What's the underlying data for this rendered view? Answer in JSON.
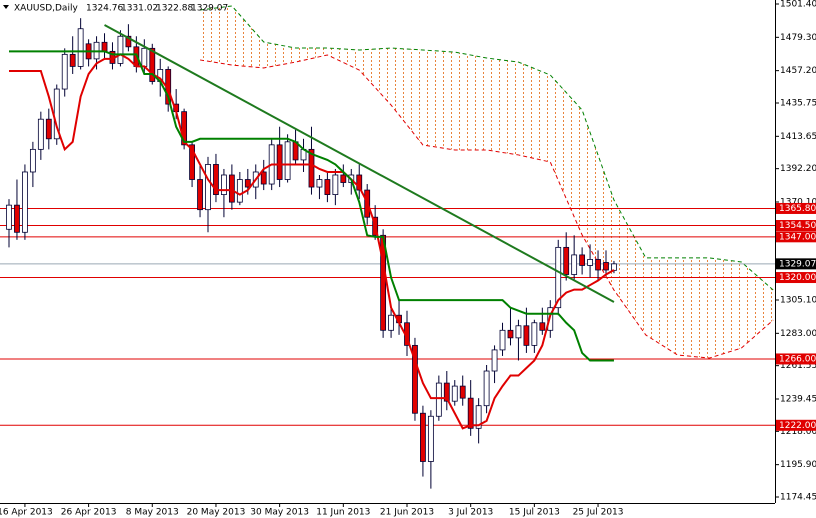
{
  "chart_data": {
    "type": "candlestick",
    "title": "XAUUSD,Daily",
    "ylim": [
      1174.45,
      1501.4
    ],
    "yticks": [
      {
        "value": 1501.4,
        "label": "1501.40"
      },
      {
        "value": 1479.3,
        "label": "1479.30"
      },
      {
        "value": 1457.2,
        "label": "1457.20"
      },
      1435.75,
      1413.65,
      {
        "value": 1392.2,
        "label": "1392.20"
      },
      {
        "value": 1370.1,
        "label": "1370.10"
      },
      {
        "value": 1305.1,
        "label": "1305.10"
      },
      {
        "value": 1283,
        "label": "1283.00"
      },
      1261.55,
      1239.45,
      {
        "value": 1218,
        "label": "1218.00"
      },
      {
        "value": 1195.9,
        "label": "1195.90"
      },
      1174.45
    ],
    "xticks": [
      {
        "value": 2,
        "label": "16 Apr 2013"
      },
      {
        "value": 10,
        "label": "26 Apr 2013"
      },
      {
        "value": 18,
        "label": "8 May 2013"
      },
      {
        "value": 26,
        "label": "20 May 2013"
      },
      {
        "value": 34,
        "label": "30 May 2013"
      },
      {
        "value": 42,
        "label": "11 Jun 2013"
      },
      {
        "value": 50,
        "label": "21 Jun 2013"
      },
      {
        "value": 58,
        "label": "3 Jul 2013"
      },
      {
        "value": 66,
        "label": "15 Jul 2013"
      },
      {
        "value": 74,
        "label": "25 Jul 2013"
      }
    ],
    "open": [
      1352,
      1368,
      1350,
      1390,
      1405,
      1425,
      1412,
      1445,
      1468,
      1460,
      1475,
      1465,
      1476,
      1470,
      1462,
      1480,
      1473,
      1460,
      1472,
      1450,
      1458,
      1435,
      1430,
      1408,
      1385,
      1365,
      1395,
      1375,
      1388,
      1370,
      1385,
      1380,
      1390,
      1382,
      1408,
      1385,
      1410,
      1398,
      1405,
      1380,
      1385,
      1375,
      1388,
      1383,
      1388,
      1378,
      1360,
      1348,
      1285,
      1295,
      1290,
      1275,
      1230,
      1198,
      1228,
      1250,
      1238,
      1248,
      1240,
      1220,
      1235,
      1258,
      1272,
      1285,
      1280,
      1288,
      1275,
      1290,
      1285,
      1300,
      1340,
      1322,
      1335,
      1328,
      1332,
      1330,
      1324.76
    ],
    "high": [
      1372,
      1385,
      1395,
      1410,
      1430,
      1432,
      1448,
      1472,
      1480,
      1492,
      1478,
      1480,
      1482,
      1476,
      1484,
      1488,
      1480,
      1478,
      1475,
      1465,
      1460,
      1445,
      1432,
      1410,
      1395,
      1400,
      1402,
      1392,
      1395,
      1390,
      1392,
      1395,
      1398,
      1412,
      1420,
      1415,
      1418,
      1412,
      1420,
      1388,
      1390,
      1392,
      1395,
      1392,
      1395,
      1382,
      1368,
      1352,
      1300,
      1305,
      1298,
      1280,
      1235,
      1232,
      1255,
      1258,
      1252,
      1255,
      1252,
      1240,
      1262,
      1275,
      1290,
      1300,
      1292,
      1300,
      1292,
      1300,
      1305,
      1345,
      1350,
      1348,
      1340,
      1342,
      1338,
      1338,
      1331.02
    ],
    "low": [
      1340,
      1345,
      1345,
      1380,
      1398,
      1405,
      1408,
      1440,
      1455,
      1458,
      1460,
      1458,
      1465,
      1458,
      1460,
      1470,
      1456,
      1455,
      1448,
      1440,
      1430,
      1425,
      1405,
      1380,
      1360,
      1350,
      1370,
      1360,
      1365,
      1368,
      1375,
      1372,
      1378,
      1378,
      1380,
      1383,
      1395,
      1390,
      1375,
      1372,
      1370,
      1368,
      1380,
      1375,
      1372,
      1355,
      1345,
      1280,
      1280,
      1282,
      1268,
      1225,
      1188,
      1180,
      1225,
      1232,
      1235,
      1235,
      1215,
      1210,
      1230,
      1250,
      1268,
      1275,
      1265,
      1270,
      1270,
      1282,
      1280,
      1295,
      1318,
      1318,
      1322,
      1320,
      1318,
      1321,
      1322.88
    ],
    "close": [
      1368,
      1350,
      1390,
      1405,
      1425,
      1412,
      1445,
      1468,
      1460,
      1485,
      1465,
      1476,
      1470,
      1462,
      1480,
      1473,
      1460,
      1472,
      1450,
      1458,
      1435,
      1430,
      1408,
      1385,
      1365,
      1395,
      1375,
      1388,
      1370,
      1385,
      1380,
      1390,
      1382,
      1408,
      1385,
      1410,
      1398,
      1405,
      1380,
      1385,
      1375,
      1388,
      1383,
      1388,
      1378,
      1360,
      1348,
      1285,
      1295,
      1290,
      1275,
      1230,
      1198,
      1228,
      1250,
      1238,
      1248,
      1240,
      1220,
      1235,
      1258,
      1272,
      1285,
      1280,
      1288,
      1275,
      1290,
      1285,
      1300,
      1340,
      1322,
      1335,
      1328,
      1332,
      1325,
      1325,
      1329.07
    ],
    "tenkan": [
      1457,
      1457,
      1457,
      1457,
      1457,
      1440,
      1420,
      1405,
      1410,
      1440,
      1455,
      1462,
      1465,
      1465,
      1468,
      1465,
      1460,
      1460,
      1455,
      1452,
      1445,
      1430,
      1410,
      1405,
      1395,
      1385,
      1378,
      1378,
      1378,
      1375,
      1378,
      1385,
      1392,
      1395,
      1395,
      1395,
      1395,
      1395,
      1395,
      1392,
      1390,
      1390,
      1390,
      1385,
      1380,
      1370,
      1355,
      1330,
      1300,
      1290,
      1280,
      1265,
      1250,
      1240,
      1240,
      1240,
      1230,
      1220,
      1222,
      1222,
      1225,
      1240,
      1248,
      1255,
      1255,
      1260,
      1265,
      1275,
      1295,
      1305,
      1310,
      1312,
      1312,
      1315,
      1318,
      1322,
      1325
    ],
    "kijun": [
      1470,
      1470,
      1470,
      1470,
      1470,
      1470,
      1470,
      1470,
      1470,
      1470,
      1470,
      1470,
      1470,
      1468,
      1468,
      1468,
      1468,
      1455,
      1455,
      1450,
      1440,
      1420,
      1410,
      1410,
      1412,
      1412,
      1412,
      1412,
      1412,
      1412,
      1412,
      1412,
      1412,
      1412,
      1412,
      1412,
      1410,
      1405,
      1402,
      1400,
      1398,
      1395,
      1390,
      1385,
      1370,
      1348,
      1347,
      1347,
      1320,
      1305,
      1305,
      1305,
      1305,
      1305,
      1305,
      1305,
      1305,
      1305,
      1305,
      1305,
      1305,
      1305,
      1305,
      1300,
      1298,
      1296,
      1296,
      1296,
      1296,
      1296,
      1290,
      1285,
      1270,
      1265,
      1265,
      1265,
      1265
    ],
    "cloud_x": [
      24,
      28,
      32,
      36,
      40,
      44,
      48,
      52,
      56,
      60,
      64,
      68,
      72,
      76,
      80,
      84,
      88,
      92,
      96
    ],
    "cloud_upper": [
      1497.4,
      1500.1,
      1476.2,
      1472.2,
      1472.2,
      1470.9,
      1472.2,
      1470.9,
      1469.5,
      1465.6,
      1462.9,
      1454.3,
      1431.1,
      1371.4,
      1333,
      1333,
      1333,
      1330.3,
      1311.7
    ],
    "cloud_lower": [
      1464.3,
      1460.9,
      1459,
      1462.9,
      1467.6,
      1457.6,
      1434.4,
      1407.9,
      1404.6,
      1404.6,
      1401.3,
      1396.6,
      1348.2,
      1311.7,
      1281.9,
      1268.6,
      1266.6,
      1273.2,
      1291.8
    ],
    "trendline": {
      "x": [
        12,
        76
      ],
      "values": [
        1487.5,
        1303.8
      ]
    },
    "levels": [
      {
        "value": 1365.8,
        "label": "1365.80"
      },
      {
        "value": 1354.5,
        "label": "1354.50"
      },
      {
        "value": 1347,
        "label": "1347.00"
      },
      {
        "value": 1320,
        "label": "1320.00"
      },
      {
        "value": 1266,
        "label": "1266.00"
      },
      {
        "value": 1222,
        "label": "1222.00"
      }
    ],
    "colors": {
      "bull": "#ffffff",
      "bear": "#e00000",
      "outline": "#000033",
      "tenkan": "#e00000",
      "kijun": "#008000",
      "trendline": "#1e7a1e",
      "cloud": "#e8843c",
      "level": "#e00000",
      "price_line": "#9aa9b5"
    }
  }
}
